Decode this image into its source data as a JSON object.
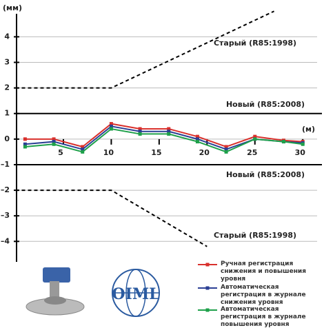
{
  "chart_data": {
    "type": "line",
    "y_unit": "(мм)",
    "x_unit": "(м)",
    "logo": "OIML",
    "xlim": [
      0,
      32
    ],
    "ylim": [
      -4.8,
      4.9
    ],
    "xticks": [
      5,
      10,
      15,
      20,
      25,
      30
    ],
    "yticks": [
      4,
      3,
      2,
      1,
      0,
      {
        "value": -1,
        "label": "–1"
      },
      {
        "value": -2,
        "label": "–2"
      },
      {
        "value": -3,
        "label": "–3"
      },
      {
        "value": -4,
        "label": "–4"
      }
    ],
    "grid": true,
    "x": [
      1,
      4,
      7,
      10,
      13,
      16,
      19,
      22,
      25,
      28,
      30
    ],
    "series": [
      {
        "name": "Ручная регистрация снижения и повышения уровня",
        "color": "#d9302c",
        "values": [
          0,
          0,
          -0.3,
          0.6,
          0.4,
          0.4,
          0.1,
          -0.3,
          0.1,
          -0.05,
          -0.1
        ]
      },
      {
        "name": "Автоматическая регистрация в журнале снижения уровня",
        "color": "#2b3f94",
        "values": [
          -0.2,
          -0.1,
          -0.4,
          0.5,
          0.3,
          0.3,
          0,
          -0.4,
          0,
          -0.1,
          -0.15
        ]
      },
      {
        "name": "Автоматическая регистрация в журнале повышения уровня",
        "color": "#1ea04a",
        "values": [
          -0.3,
          -0.2,
          -0.5,
          0.4,
          0.2,
          0.2,
          -0.1,
          -0.5,
          0,
          -0.1,
          -0.2
        ]
      }
    ],
    "limits": [
      {
        "name": "Старый (R85:1998)",
        "x": [
          0,
          10,
          27
        ],
        "values": [
          2,
          2,
          5
        ],
        "dashed": true
      },
      {
        "name": "Новый (R85:2008)",
        "x": [
          0,
          32
        ],
        "values": [
          1,
          1
        ],
        "dashed": false
      },
      {
        "name": "Новый (R85:2008)",
        "x": [
          0,
          32
        ],
        "values": [
          -1,
          -1
        ],
        "dashed": false
      },
      {
        "name": "Старый (R85:1998)",
        "x": [
          0,
          10,
          20
        ],
        "values": [
          -2,
          -2,
          -4.2
        ],
        "dashed": true
      }
    ]
  }
}
